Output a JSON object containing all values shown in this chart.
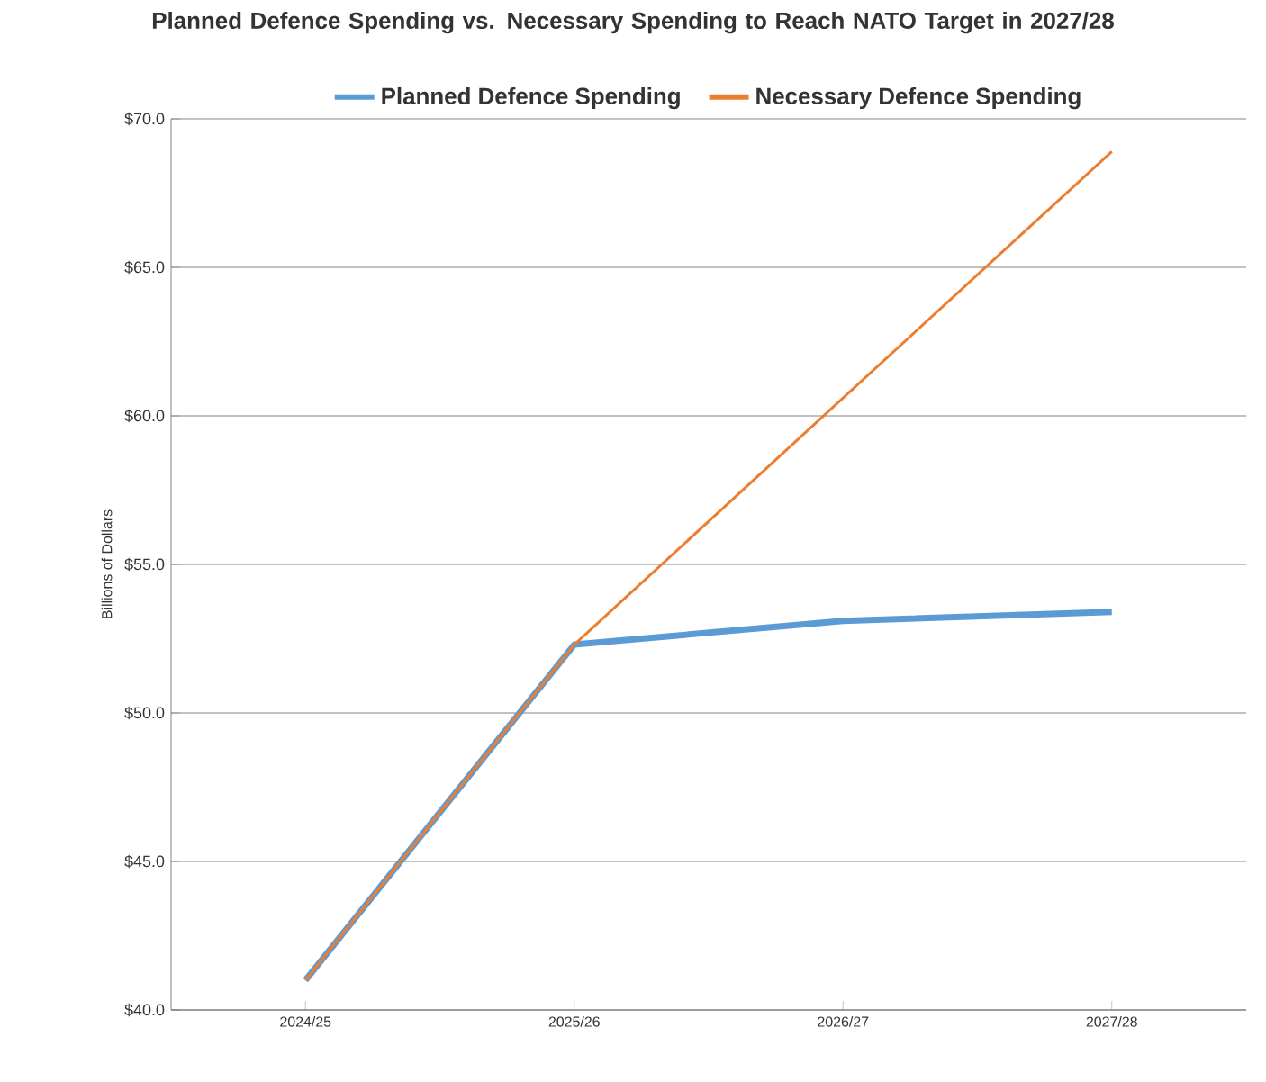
{
  "chart_data": {
    "type": "line",
    "title": "Planned Defence Spending vs. Necessary Spending to Reach NATO Target in 2027/28",
    "ylabel": "Billions of Dollars",
    "categories": [
      "2024/25",
      "2025/26",
      "2026/27",
      "2027/28"
    ],
    "series": [
      {
        "name": "Planned Defence Spending",
        "color": "#5b9bd5",
        "values": [
          41.0,
          52.3,
          53.1,
          53.4
        ]
      },
      {
        "name": "Necessary Defence Spending",
        "color": "#ed7d31",
        "values": [
          41.0,
          52.3,
          60.6,
          68.9
        ]
      }
    ],
    "ylim": [
      40,
      70
    ],
    "yticks": [
      {
        "value": 40,
        "label": "$40.0"
      },
      {
        "value": 45,
        "label": "$45.0"
      },
      {
        "value": 50,
        "label": "$50.0"
      },
      {
        "value": 55,
        "label": "$55.0"
      },
      {
        "value": 60,
        "label": "$60.0"
      },
      {
        "value": 65,
        "label": "$65.0"
      },
      {
        "value": 70,
        "label": "$70.0"
      }
    ],
    "grid": "y",
    "legend": "top",
    "marker": "none",
    "line_style": "solid"
  }
}
